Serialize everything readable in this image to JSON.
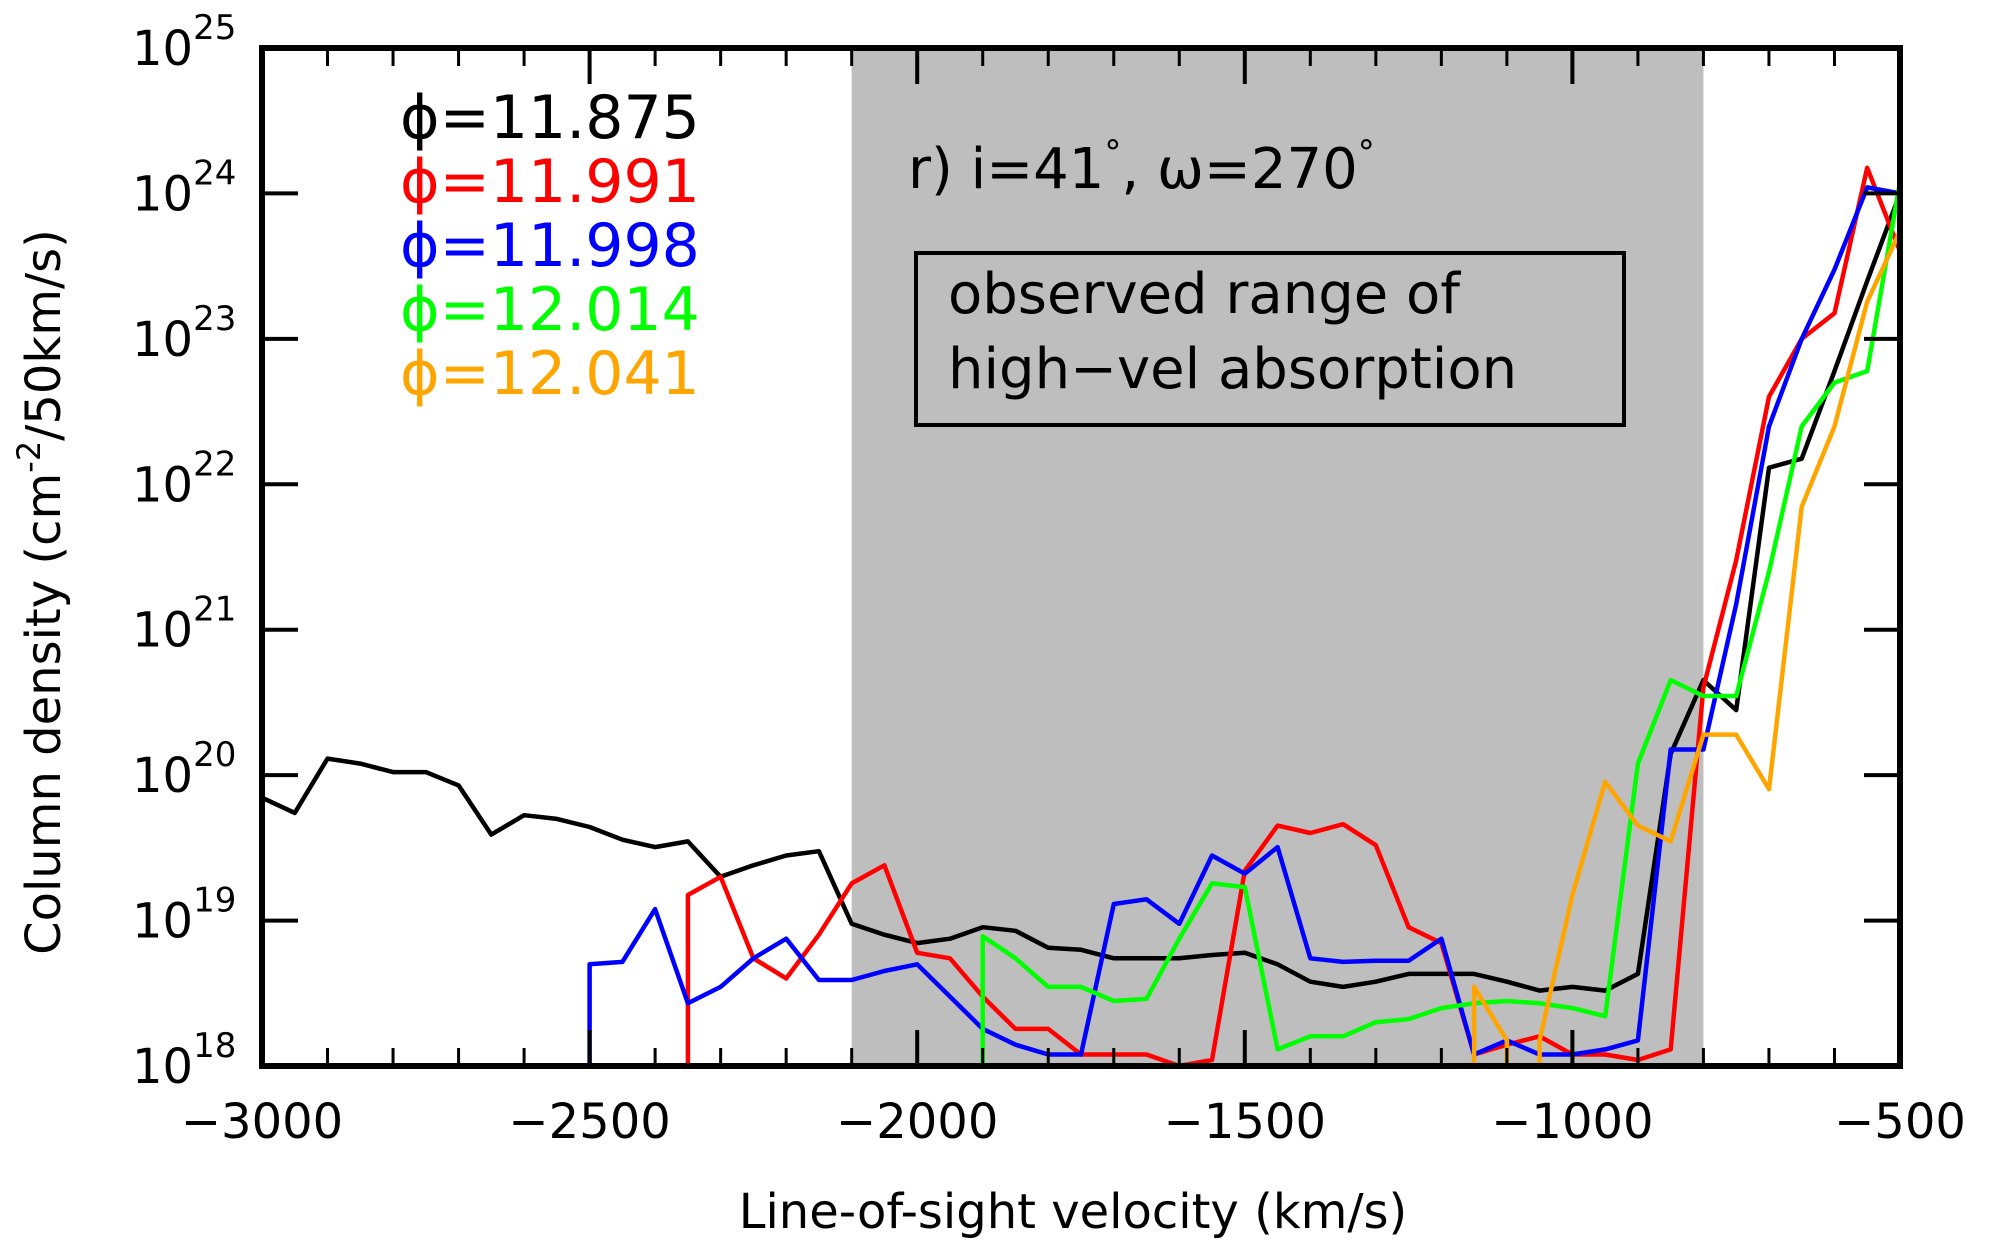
{
  "chart_data": {
    "type": "line",
    "xlabel": "Line-of-sight velocity (km/s)",
    "ylabel": "Column density (cm",
    "ylabel_exp": "-2",
    "ylabel_tail": "/50km/s)",
    "xlim": [
      -3000,
      -500
    ],
    "ylim": [
      1e+18,
      1e+25
    ],
    "yscale": "log",
    "xticks": [
      -3000,
      -2500,
      -2000,
      -1500,
      -1000,
      -500
    ],
    "xtick_labels": [
      "−3000",
      "−2500",
      "−2000",
      "−1500",
      "−1000",
      "−500"
    ],
    "yticks": [
      {
        "value": 1e+18,
        "base": "10",
        "exp": "18"
      },
      {
        "value": 1e+19,
        "base": "10",
        "exp": "19"
      },
      {
        "value": 1e+20,
        "base": "10",
        "exp": "20"
      },
      {
        "value": 1e+21,
        "base": "10",
        "exp": "21"
      },
      {
        "value": 1e+22,
        "base": "10",
        "exp": "22"
      },
      {
        "value": 1e+23,
        "base": "10",
        "exp": "23"
      },
      {
        "value": 1e+24,
        "base": "10",
        "exp": "24"
      },
      {
        "value": 1e+25,
        "base": "10",
        "exp": "25"
      }
    ],
    "shaded_range": {
      "x0": -2100,
      "x1": -800,
      "color": "#bebebe"
    },
    "panel_label": {
      "prefix": "r) i=41",
      "deg1": "°",
      "mid": ", ω=270",
      "deg2": "°"
    },
    "box_label": {
      "line1": "observed range of",
      "line2": "high−vel absorption"
    },
    "series": [
      {
        "name": "ϕ=11.875",
        "color": "#000000",
        "x": [
          -3000,
          -2950,
          -2900,
          -2850,
          -2800,
          -2750,
          -2700,
          -2650,
          -2600,
          -2550,
          -2500,
          -2450,
          -2400,
          -2350,
          -2300,
          -2250,
          -2200,
          -2150,
          -2100,
          -2050,
          -2000,
          -1950,
          -1900,
          -1850,
          -1800,
          -1750,
          -1700,
          -1650,
          -1600,
          -1550,
          -1500,
          -1450,
          -1400,
          -1350,
          -1300,
          -1250,
          -1200,
          -1150,
          -1100,
          -1050,
          -1000,
          -950,
          -900,
          -850,
          -800,
          -750,
          -700,
          -650,
          -600,
          -550,
          -500
        ],
        "y": [
          7e+19,
          5.5e+19,
          1.3e+20,
          1.2e+20,
          1.05e+20,
          1.05e+20,
          8.5e+19,
          3.9e+19,
          5.3e+19,
          5e+19,
          4.4e+19,
          3.6e+19,
          3.2e+19,
          3.5e+19,
          2e+19,
          2.4e+19,
          2.8e+19,
          3e+19,
          9.5e+18,
          8e+18,
          7e+18,
          7.5e+18,
          9e+18,
          8.5e+18,
          6.5e+18,
          6.3e+18,
          5.5e+18,
          5.5e+18,
          5.5e+18,
          5.8e+18,
          6e+18,
          5e+18,
          3.8e+18,
          3.5e+18,
          3.8e+18,
          4.3e+18,
          4.3e+18,
          4.3e+18,
          3.8e+18,
          3.3e+18,
          3.5e+18,
          3.3e+18,
          4.3e+18,
          1.4e+20,
          4.5e+20,
          2.8e+20,
          1.3e+22,
          1.5e+22,
          6e+22,
          2.5e+23,
          1e+24
        ]
      },
      {
        "name": "ϕ=11.991",
        "color": "#ff0000",
        "x": [
          -2350,
          -2350,
          -2300,
          -2250,
          -2200,
          -2150,
          -2100,
          -2050,
          -2000,
          -1950,
          -1900,
          -1850,
          -1800,
          -1750,
          -1700,
          -1650,
          -1600,
          -1550,
          -1500,
          -1450,
          -1400,
          -1350,
          -1300,
          -1250,
          -1200,
          -1150,
          -1100,
          -1050,
          -1000,
          -950,
          -900,
          -850,
          -800,
          -750,
          -700,
          -650,
          -600,
          -550,
          -500
        ],
        "y": [
          1e+18,
          1.5e+19,
          2e+19,
          5.5e+18,
          4e+18,
          8e+18,
          1.8e+19,
          2.4e+19,
          6e+18,
          5.5e+18,
          3e+18,
          1.8e+18,
          1.8e+18,
          1.2e+18,
          1.2e+18,
          1.2e+18,
          1e+18,
          1.1e+18,
          2.2e+19,
          4.5e+19,
          4e+19,
          4.6e+19,
          3.3e+19,
          9e+18,
          7e+18,
          1.2e+18,
          1.4e+18,
          1.6e+18,
          1.2e+18,
          1.2e+18,
          1.1e+18,
          1.3e+18,
          4e+20,
          3e+21,
          4e+22,
          1e+23,
          1.5e+23,
          1.5e+24,
          4e+23
        ]
      },
      {
        "name": "ϕ=11.998",
        "color": "#0000ff",
        "x": [
          -2500,
          -2500,
          -2450,
          -2400,
          -2350,
          -2300,
          -2250,
          -2200,
          -2150,
          -2100,
          -2050,
          -2000,
          -1950,
          -1900,
          -1850,
          -1800,
          -1750,
          -1700,
          -1650,
          -1600,
          -1550,
          -1500,
          -1450,
          -1400,
          -1350,
          -1300,
          -1250,
          -1200,
          -1150,
          -1100,
          -1050,
          -1000,
          -950,
          -900,
          -850,
          -800,
          -750,
          -700,
          -650,
          -600,
          -550,
          -500
        ],
        "y": [
          1e+18,
          5e+18,
          5.2e+18,
          1.2e+19,
          2.7e+18,
          3.5e+18,
          5.5e+18,
          7.5e+18,
          3.9e+18,
          3.9e+18,
          4.5e+18,
          5e+18,
          3e+18,
          1.8e+18,
          1.4e+18,
          1.2e+18,
          1.2e+18,
          1.3e+19,
          1.4e+19,
          9.5e+18,
          2.8e+19,
          2.1e+19,
          3.2e+19,
          5.5e+18,
          5.2e+18,
          5.3e+18,
          5.3e+18,
          7.5e+18,
          1.2e+18,
          1.5e+18,
          1.2e+18,
          1.2e+18,
          1.3e+18,
          1.5e+18,
          1.5e+20,
          1.5e+20,
          1.5e+21,
          2.5e+22,
          1e+23,
          3e+23,
          1.1e+24,
          1e+24
        ]
      },
      {
        "name": "ϕ=12.014",
        "color": "#00ff00",
        "x": [
          -1900,
          -1900,
          -1850,
          -1800,
          -1750,
          -1700,
          -1650,
          -1600,
          -1550,
          -1500,
          -1450,
          -1400,
          -1350,
          -1300,
          -1250,
          -1200,
          -1150,
          -1100,
          -1050,
          -1000,
          -950,
          -900,
          -850,
          -800,
          -750,
          -700,
          -650,
          -600,
          -550,
          -500
        ],
        "y": [
          1e+18,
          7.8e+18,
          5.5e+18,
          3.5e+18,
          3.5e+18,
          2.8e+18,
          2.9e+18,
          7.5e+18,
          1.8e+19,
          1.7e+19,
          1.3e+18,
          1.6e+18,
          1.6e+18,
          2e+18,
          2.1e+18,
          2.5e+18,
          2.7e+18,
          2.8e+18,
          2.7e+18,
          2.5e+18,
          2.2e+18,
          1.2e+20,
          4.5e+20,
          3.5e+20,
          3.5e+20,
          2.5e+21,
          2.5e+22,
          5e+22,
          6e+22,
          1.2e+24
        ]
      },
      {
        "name": "ϕ=12.041",
        "color": "#ffa500",
        "x": [
          -1150,
          -1150,
          -1100,
          -1100,
          -1050,
          -1050,
          -1000,
          -950,
          -900,
          -850,
          -800,
          -750,
          -700,
          -650,
          -600,
          -550,
          -500
        ],
        "y": [
          1e+18,
          3.5e+18,
          1.5e+18,
          1e+18,
          1e+18,
          1.5e+18,
          1.5e+19,
          9e+19,
          4.5e+19,
          3.5e+19,
          1.9e+20,
          1.9e+20,
          8e+19,
          7e+21,
          2.5e+22,
          1.8e+23,
          5.5e+23
        ]
      }
    ]
  }
}
